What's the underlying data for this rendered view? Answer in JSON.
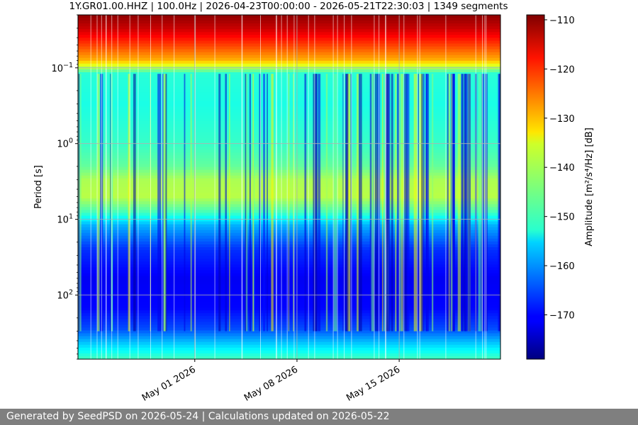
{
  "chart_data": {
    "type": "heatmap",
    "title": "1Y.GR01.00.HHZ | 100.0Hz | 2026-04-23T00:00:00 - 2026-05-21T22:30:03 | 1349 segments",
    "ylabel": "Period [s]",
    "xlabel": "",
    "x_start": "2026-04-23T00:00:00",
    "x_end": "2026-05-21T22:30:03",
    "xticks": [
      {
        "date": "2026-05-01",
        "label": "May 01 2026"
      },
      {
        "date": "2026-05-08",
        "label": "May 08 2026"
      },
      {
        "date": "2026-05-15",
        "label": "May 15 2026"
      }
    ],
    "yscale": "log",
    "yinverted": true,
    "ylim": [
      0.02,
      700
    ],
    "yticks": [
      {
        "value": 0.1,
        "base": "10",
        "exp": "−1"
      },
      {
        "value": 1,
        "base": "10",
        "exp": "0"
      },
      {
        "value": 10,
        "base": "10",
        "exp": "1"
      },
      {
        "value": 100,
        "base": "10",
        "exp": "2"
      }
    ],
    "grid": true,
    "colormap": "jet",
    "colorbar": {
      "label": "Amplitude [m²/s⁴/Hz] [dB]",
      "vmin": -179,
      "vmax": -109,
      "ticks": [
        -110,
        -120,
        -130,
        -140,
        -150,
        -160,
        -170
      ],
      "tick_labels": [
        "−110",
        "−120",
        "−130",
        "−140",
        "−150",
        "−160",
        "−170"
      ]
    },
    "amplitude_profile_by_period": [
      {
        "period": 0.02,
        "db": -110
      },
      {
        "period": 0.03,
        "db": -114
      },
      {
        "period": 0.05,
        "db": -122
      },
      {
        "period": 0.08,
        "db": -130
      },
      {
        "period": 0.12,
        "db": -150
      },
      {
        "period": 0.3,
        "db": -151
      },
      {
        "period": 1,
        "db": -149
      },
      {
        "period": 2,
        "db": -146
      },
      {
        "period": 3,
        "db": -141
      },
      {
        "period": 5,
        "db": -140
      },
      {
        "period": 8,
        "db": -148
      },
      {
        "period": 12,
        "db": -158
      },
      {
        "period": 25,
        "db": -167
      },
      {
        "period": 60,
        "db": -171
      },
      {
        "period": 150,
        "db": -170
      },
      {
        "period": 280,
        "db": -165
      },
      {
        "period": 420,
        "db": -157
      },
      {
        "period": 700,
        "db": -148
      }
    ]
  },
  "footer": {
    "text": "Generated by SeedPSD on 2026-05-24 | Calculations updated on 2026-05-22"
  }
}
